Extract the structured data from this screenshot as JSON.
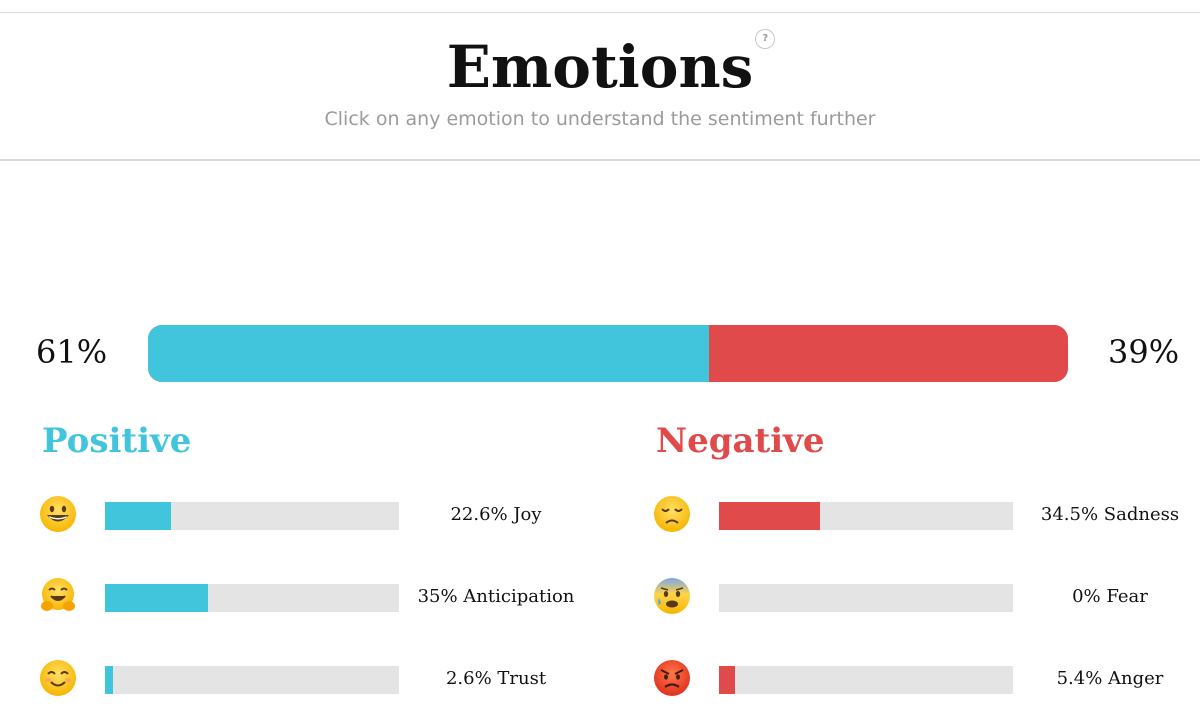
{
  "header": {
    "title": "Emotions",
    "help": "?",
    "subtitle": "Click on any emotion to understand the sentiment further"
  },
  "summary": {
    "positive_label": "61%",
    "negative_label": "39%",
    "positive_fraction": 0.61,
    "positive_color": "#40c5dd",
    "negative_color": "#e04a4a"
  },
  "positive": {
    "title": "Positive",
    "items": [
      {
        "emoji": "grinning-face-icon",
        "label": "22.6% Joy",
        "value": 0.226
      },
      {
        "emoji": "hugging-face-icon",
        "label": "35% Anticipation",
        "value": 0.35
      },
      {
        "emoji": "smiling-face-icon",
        "label": "2.6% Trust",
        "value": 0.026
      }
    ]
  },
  "negative": {
    "title": "Negative",
    "items": [
      {
        "emoji": "disappointed-face-icon",
        "label": "34.5% Sadness",
        "value": 0.345
      },
      {
        "emoji": "anxious-face-icon",
        "label": "0% Fear",
        "value": 0.0
      },
      {
        "emoji": "angry-face-icon",
        "label": "5.4% Anger",
        "value": 0.054
      }
    ]
  }
}
